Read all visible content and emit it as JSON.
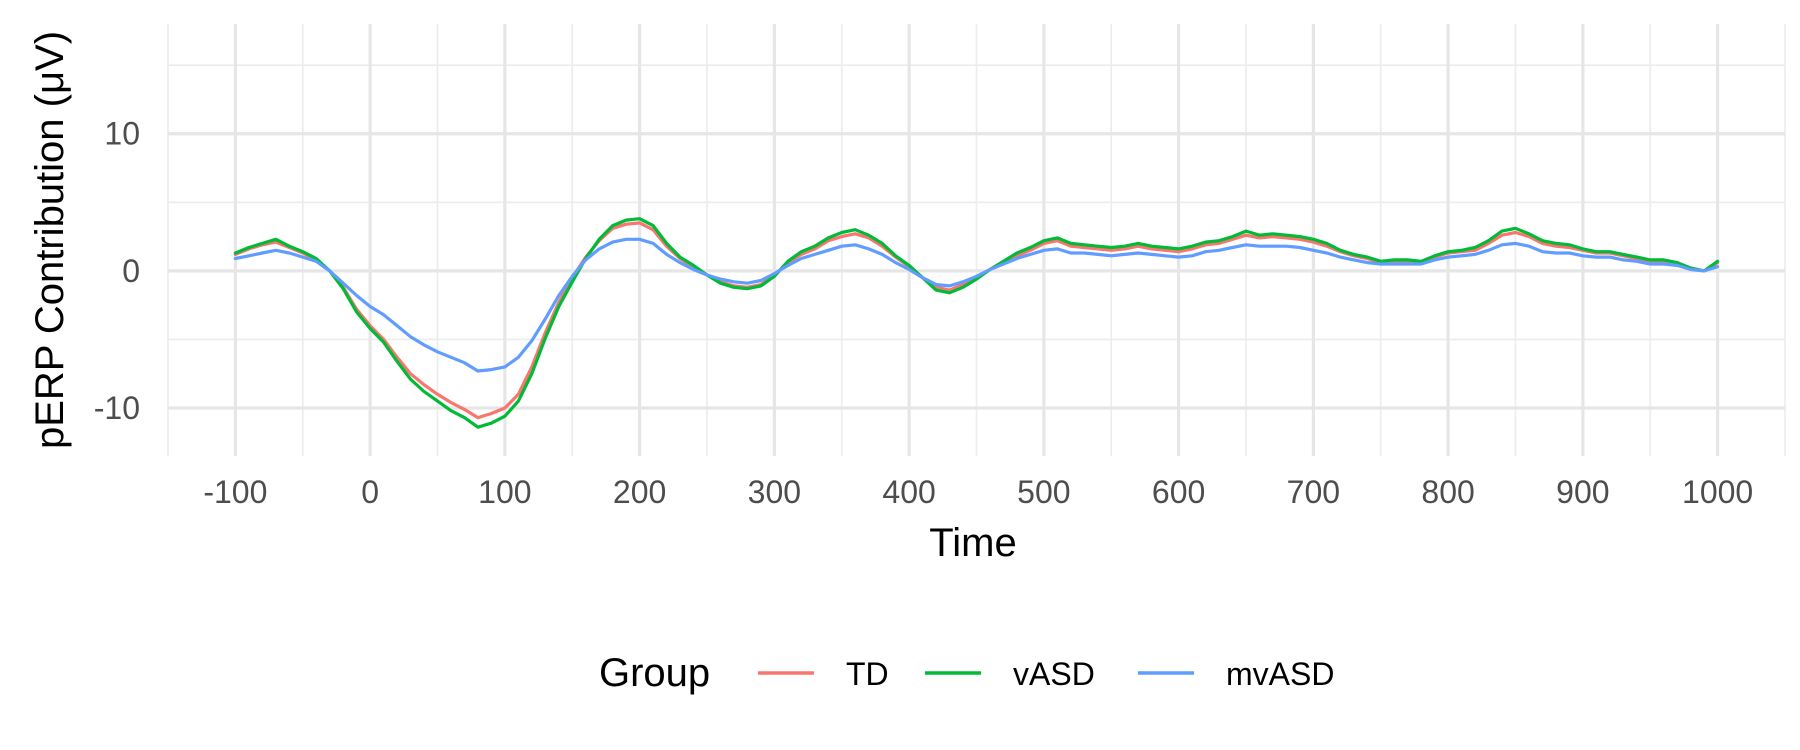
{
  "chart_data": {
    "type": "line",
    "title": "",
    "xlabel": "Time",
    "ylabel": "pERP Contribution (μV)",
    "xlim": [
      -150,
      1050
    ],
    "ylim": [
      -13.5,
      18
    ],
    "x_major_ticks": [
      -100,
      0,
      100,
      200,
      300,
      400,
      500,
      600,
      700,
      800,
      900,
      1000
    ],
    "x_tick_labels": [
      "-100",
      "0",
      "100",
      "200",
      "300",
      "400",
      "500",
      "600",
      "700",
      "800",
      "900",
      "1000"
    ],
    "x_minor_ticks": [
      -150,
      -50,
      50,
      150,
      250,
      350,
      450,
      550,
      650,
      750,
      850,
      950,
      1050
    ],
    "y_major_ticks": [
      -10,
      0,
      10
    ],
    "y_tick_labels": [
      "-10",
      "0",
      "10"
    ],
    "y_minor_ticks": [
      -5,
      5,
      15
    ],
    "grid": true,
    "legend": {
      "title": "Group",
      "position": "bottom",
      "entries": [
        "TD",
        "vASD",
        "mvASD"
      ]
    },
    "x": [
      -100,
      -90,
      -80,
      -70,
      -60,
      -50,
      -40,
      -30,
      -20,
      -10,
      0,
      10,
      20,
      30,
      40,
      50,
      60,
      70,
      80,
      90,
      100,
      110,
      120,
      130,
      140,
      150,
      160,
      170,
      180,
      190,
      200,
      210,
      220,
      230,
      240,
      250,
      260,
      270,
      280,
      290,
      300,
      310,
      320,
      330,
      340,
      350,
      360,
      370,
      380,
      390,
      400,
      410,
      420,
      430,
      440,
      450,
      460,
      470,
      480,
      490,
      500,
      510,
      520,
      530,
      540,
      550,
      560,
      570,
      580,
      590,
      600,
      610,
      620,
      630,
      640,
      650,
      660,
      670,
      680,
      690,
      700,
      710,
      720,
      730,
      740,
      750,
      760,
      770,
      780,
      790,
      800,
      810,
      820,
      830,
      840,
      850,
      860,
      870,
      880,
      890,
      900,
      910,
      920,
      930,
      940,
      950,
      960,
      970,
      980,
      990,
      1000
    ],
    "series": [
      {
        "name": "TD",
        "color": "#F8766D",
        "values": [
          1.2,
          1.6,
          1.9,
          2.1,
          1.7,
          1.3,
          0.8,
          0,
          -1.2,
          -2.8,
          -4.0,
          -5.0,
          -6.3,
          -7.5,
          -8.3,
          -9.0,
          -9.6,
          -10.1,
          -10.7,
          -10.4,
          -10.0,
          -9.0,
          -7.0,
          -4.5,
          -2.3,
          -0.5,
          1.0,
          2.2,
          3.1,
          3.4,
          3.5,
          3.0,
          1.8,
          0.9,
          0.3,
          -0.3,
          -0.8,
          -1.1,
          -1.2,
          -1.0,
          -0.3,
          0.6,
          1.2,
          1.6,
          2.2,
          2.5,
          2.7,
          2.4,
          1.8,
          1.0,
          0.3,
          -0.5,
          -1.2,
          -1.4,
          -1.0,
          -0.5,
          0.1,
          0.6,
          1.1,
          1.5,
          2.0,
          2.2,
          1.8,
          1.7,
          1.6,
          1.5,
          1.6,
          1.8,
          1.6,
          1.5,
          1.4,
          1.6,
          1.9,
          2.0,
          2.3,
          2.6,
          2.4,
          2.5,
          2.4,
          2.3,
          2.1,
          1.8,
          1.4,
          1.1,
          0.9,
          0.6,
          0.7,
          0.7,
          0.6,
          1.0,
          1.3,
          1.4,
          1.5,
          2.0,
          2.6,
          2.8,
          2.5,
          2.0,
          1.8,
          1.7,
          1.5,
          1.3,
          1.3,
          1.1,
          0.9,
          0.7,
          0.7,
          0.5,
          0.2,
          0.0,
          0.6
        ]
      },
      {
        "name": "vASD",
        "color": "#00BA38",
        "values": [
          1.3,
          1.7,
          2.0,
          2.3,
          1.8,
          1.4,
          0.9,
          0,
          -1.3,
          -3.0,
          -4.2,
          -5.2,
          -6.6,
          -7.9,
          -8.8,
          -9.5,
          -10.2,
          -10.7,
          -11.4,
          -11.1,
          -10.6,
          -9.5,
          -7.5,
          -4.9,
          -2.6,
          -0.8,
          0.9,
          2.3,
          3.3,
          3.7,
          3.8,
          3.3,
          2.0,
          1.0,
          0.4,
          -0.3,
          -0.9,
          -1.2,
          -1.3,
          -1.1,
          -0.4,
          0.7,
          1.4,
          1.8,
          2.4,
          2.8,
          3.0,
          2.6,
          2.0,
          1.1,
          0.4,
          -0.5,
          -1.4,
          -1.6,
          -1.2,
          -0.6,
          0.1,
          0.7,
          1.3,
          1.7,
          2.2,
          2.4,
          2.0,
          1.9,
          1.8,
          1.7,
          1.8,
          2.0,
          1.8,
          1.7,
          1.6,
          1.8,
          2.1,
          2.2,
          2.5,
          2.9,
          2.6,
          2.7,
          2.6,
          2.5,
          2.3,
          2.0,
          1.5,
          1.2,
          1.0,
          0.7,
          0.8,
          0.8,
          0.7,
          1.1,
          1.4,
          1.5,
          1.7,
          2.2,
          2.9,
          3.1,
          2.7,
          2.2,
          2.0,
          1.9,
          1.6,
          1.4,
          1.4,
          1.2,
          1.0,
          0.8,
          0.8,
          0.6,
          0.2,
          0.0,
          0.7
        ]
      },
      {
        "name": "mvASD",
        "color": "#619CFF",
        "values": [
          0.9,
          1.1,
          1.3,
          1.5,
          1.3,
          1.0,
          0.7,
          0,
          -0.9,
          -1.8,
          -2.6,
          -3.2,
          -4.0,
          -4.8,
          -5.4,
          -5.9,
          -6.3,
          -6.7,
          -7.3,
          -7.2,
          -7.0,
          -6.3,
          -5.1,
          -3.5,
          -1.8,
          -0.4,
          0.8,
          1.6,
          2.1,
          2.3,
          2.3,
          2.0,
          1.2,
          0.6,
          0.1,
          -0.3,
          -0.6,
          -0.8,
          -0.9,
          -0.7,
          -0.2,
          0.4,
          0.9,
          1.2,
          1.5,
          1.8,
          1.9,
          1.6,
          1.2,
          0.6,
          0.1,
          -0.5,
          -1.0,
          -1.1,
          -0.8,
          -0.4,
          0.1,
          0.5,
          0.9,
          1.2,
          1.5,
          1.6,
          1.3,
          1.3,
          1.2,
          1.1,
          1.2,
          1.3,
          1.2,
          1.1,
          1.0,
          1.1,
          1.4,
          1.5,
          1.7,
          1.9,
          1.8,
          1.8,
          1.8,
          1.7,
          1.5,
          1.3,
          1.0,
          0.8,
          0.6,
          0.5,
          0.5,
          0.5,
          0.5,
          0.8,
          1.0,
          1.1,
          1.2,
          1.5,
          1.9,
          2.0,
          1.8,
          1.4,
          1.3,
          1.3,
          1.1,
          1.0,
          1.0,
          0.8,
          0.7,
          0.5,
          0.5,
          0.4,
          0.1,
          0.0,
          0.3
        ]
      }
    ]
  }
}
